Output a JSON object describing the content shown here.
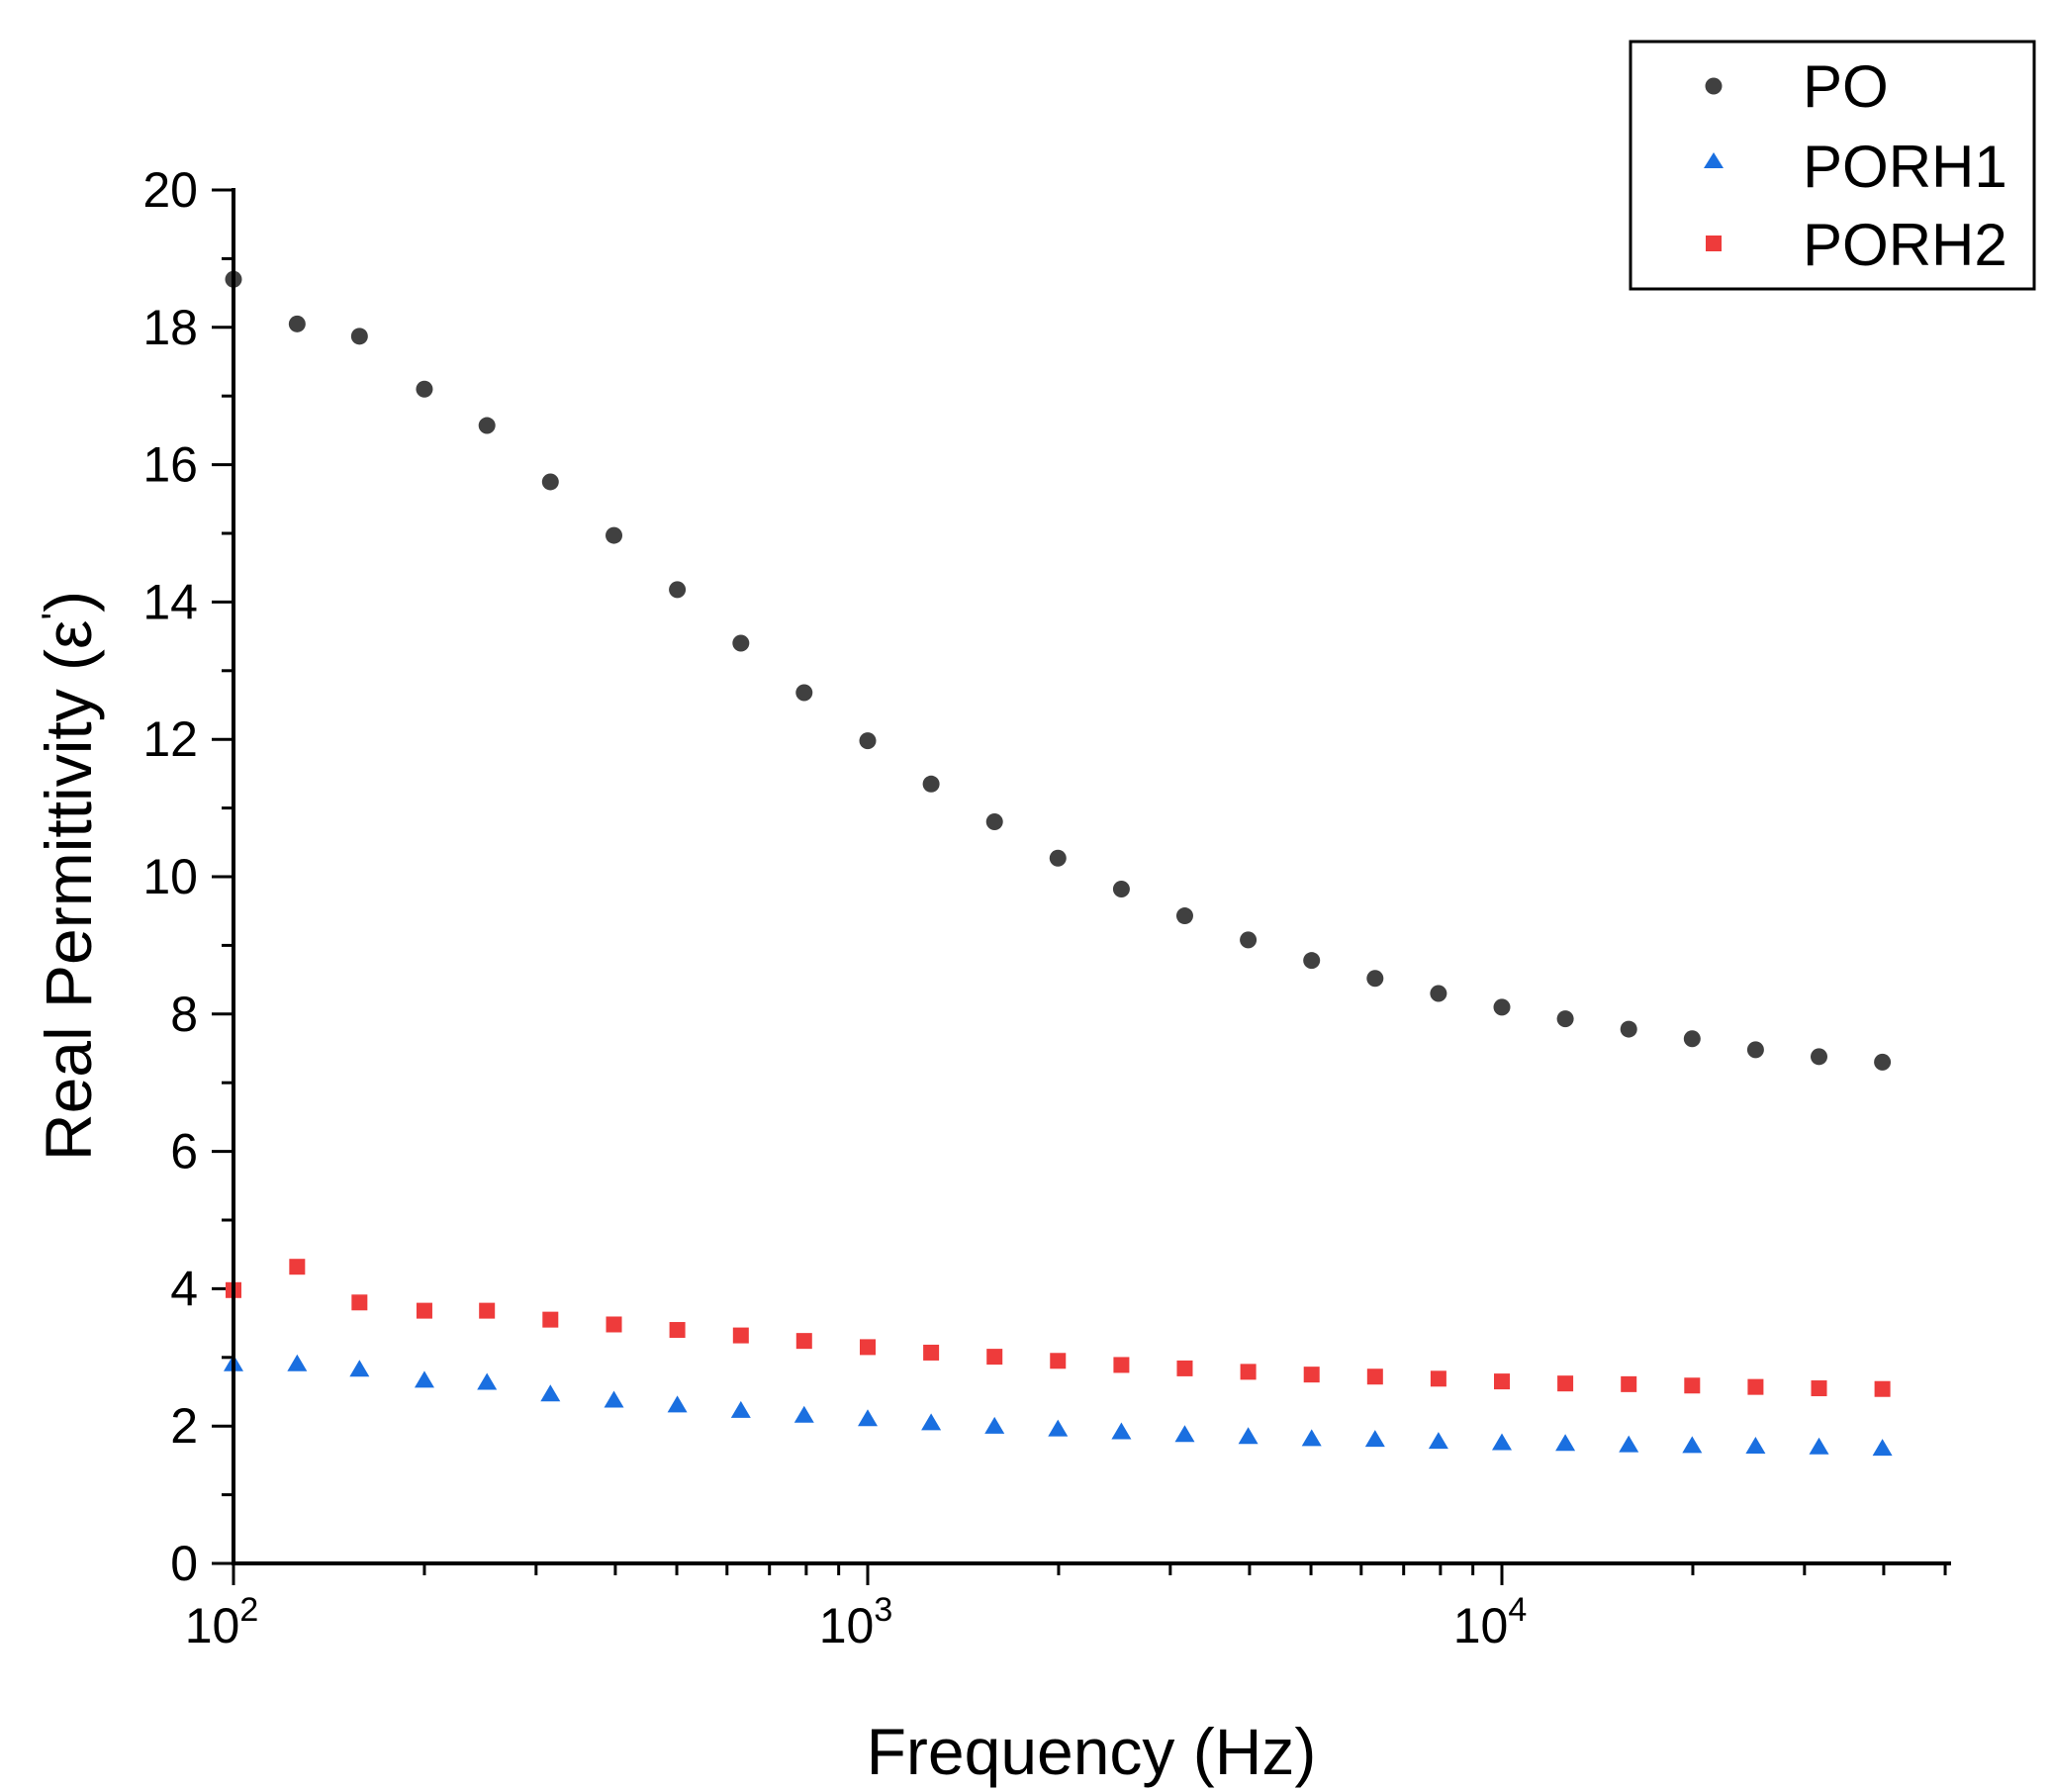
{
  "chart_data": {
    "type": "scatter",
    "xscale": "log",
    "xlabel": "Frequency (Hz)",
    "ylabel_main": "Real Permittivity (ε",
    "ylabel_prime": "'",
    "ylabel_close": ")",
    "xlim": [
      100,
      50000
    ],
    "ylim": [
      0,
      20
    ],
    "yticks": [
      0,
      2,
      4,
      6,
      8,
      10,
      12,
      14,
      16,
      18,
      20
    ],
    "xticks": [
      {
        "value": 100,
        "base": "10",
        "exp": "2"
      },
      {
        "value": 1000,
        "base": "10",
        "exp": "3"
      },
      {
        "value": 10000,
        "base": "10",
        "exp": "4"
      }
    ],
    "legend_position": "top-right",
    "x": [
      100,
      126,
      158,
      200,
      251,
      316,
      398,
      501,
      631,
      794,
      1000,
      1259,
      1585,
      1995,
      2512,
      3162,
      3981,
      5012,
      6310,
      7943,
      10000,
      12589,
      15849,
      19953,
      25119,
      31623,
      39811
    ],
    "series": [
      {
        "name": "PO",
        "marker": "circle",
        "color": "#404040",
        "values": [
          18.7,
          18.05,
          17.87,
          17.1,
          16.57,
          15.75,
          14.97,
          14.18,
          13.4,
          12.68,
          11.98,
          11.35,
          10.8,
          10.27,
          9.82,
          9.43,
          9.08,
          8.78,
          8.52,
          8.3,
          8.1,
          7.93,
          7.78,
          7.64,
          7.48,
          7.38,
          7.3
        ]
      },
      {
        "name": "PORH1",
        "marker": "triangle",
        "color": "#1a6fe0",
        "values": [
          2.9,
          2.9,
          2.82,
          2.66,
          2.63,
          2.46,
          2.37,
          2.3,
          2.22,
          2.15,
          2.1,
          2.04,
          1.99,
          1.95,
          1.91,
          1.87,
          1.84,
          1.81,
          1.8,
          1.77,
          1.75,
          1.74,
          1.72,
          1.71,
          1.7,
          1.69,
          1.67
        ]
      },
      {
        "name": "PORH2",
        "marker": "square",
        "color": "#ee3b3b",
        "values": [
          3.98,
          4.32,
          3.8,
          3.68,
          3.68,
          3.55,
          3.48,
          3.4,
          3.32,
          3.24,
          3.15,
          3.07,
          3.01,
          2.95,
          2.89,
          2.84,
          2.79,
          2.75,
          2.72,
          2.69,
          2.65,
          2.62,
          2.61,
          2.59,
          2.57,
          2.55,
          2.54
        ]
      }
    ]
  }
}
